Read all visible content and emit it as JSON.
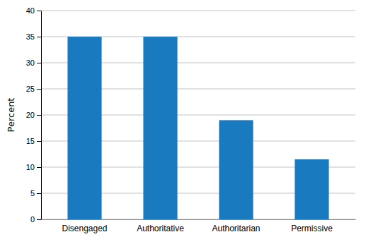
{
  "chart_data": {
    "type": "bar",
    "categories": [
      "Disengaged",
      "Authoritative",
      "Authoritarian",
      "Permissive"
    ],
    "values": [
      35,
      35,
      19,
      11.5
    ],
    "color": "#1a7abf",
    "ylabel": "Percent",
    "ylim": [
      0,
      40
    ],
    "yticks": [
      0,
      5,
      10,
      15,
      20,
      25,
      30,
      35,
      40
    ],
    "grid": true
  }
}
